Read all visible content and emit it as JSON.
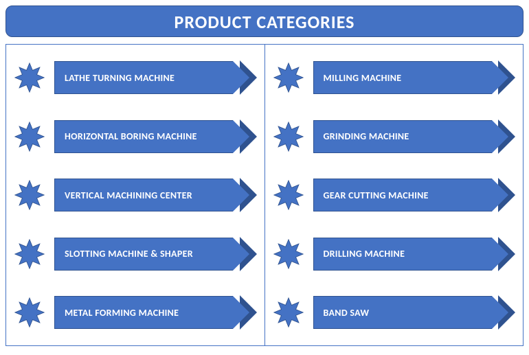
{
  "header": {
    "title": "PRODUCT CATEGORIES",
    "bg_color": "#4472c4",
    "text_color": "#ffffff",
    "fontsize": 26,
    "height": 46
  },
  "grid": {
    "border_color": "#4472c4",
    "columns": 2,
    "rows": 5
  },
  "star": {
    "fill_color": "#4472c4",
    "stroke_color": "#2f528f",
    "points": 8,
    "size": 44
  },
  "arrow": {
    "bg_color": "#4472c4",
    "text_color": "#ffffff",
    "border_color": "#2f528f",
    "fontsize": 14,
    "body_width": 260,
    "head_width": 24
  },
  "items": {
    "left": [
      "LATHE TURNING MACHINE",
      "HORIZONTAL BORING MACHINE",
      "VERTICAL MACHINING CENTER",
      "SLOTTING MACHINE & SHAPER",
      "METAL FORMING MACHINE"
    ],
    "right": [
      "MILLING MACHINE",
      "GRINDING MACHINE",
      "GEAR CUTTING  MACHINE",
      "DRILLING MACHINE",
      "BAND SAW"
    ]
  }
}
